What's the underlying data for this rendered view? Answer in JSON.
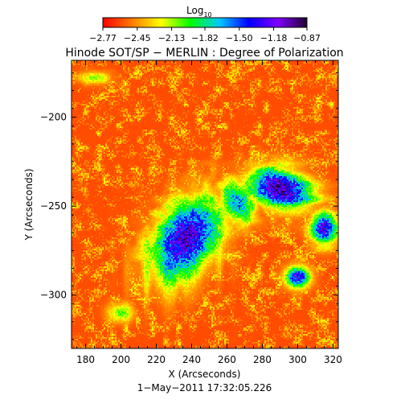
{
  "chart_data": {
    "type": "heatmap",
    "title": "Hinode SOT/SP − MERLIN : Degree of Polarization",
    "subtitle": "1−May−2011 17:32:05.226",
    "xlabel": "X (Arcseconds)",
    "ylabel": "Y (Arcseconds)",
    "xlim": [
      172,
      323
    ],
    "ylim": [
      -330,
      -168
    ],
    "x_ticks": [
      180,
      200,
      220,
      240,
      260,
      280,
      300,
      320
    ],
    "y_ticks": [
      -200,
      -250,
      -300
    ],
    "x_tick_labels": [
      "180",
      "200",
      "220",
      "240",
      "260",
      "280",
      "300",
      "320"
    ],
    "y_tick_labels": [
      "−200",
      "−250",
      "−300"
    ],
    "colorbar": {
      "label_main": "Log",
      "label_sub": "10",
      "range": [
        -2.77,
        -0.87
      ],
      "tick_values": [
        -2.77,
        -2.45,
        -2.13,
        -1.82,
        -1.5,
        -1.18,
        -0.87
      ],
      "tick_labels": [
        "−2.77",
        "−2.45",
        "−2.13",
        "−1.82",
        "−1.50",
        "−1.18",
        "−0.87"
      ],
      "colors": [
        "#ff0000",
        "#ff7a00",
        "#ffff00",
        "#00ff00",
        "#00c8ff",
        "#0000ff",
        "#8000ff",
        "#200030"
      ]
    },
    "background_value": -2.6,
    "regions": [
      {
        "name": "left plage lobe",
        "x_center": 237,
        "y_center": -268,
        "x_halfwidth": 28,
        "y_halfwidth": 18,
        "rotation_deg": 55,
        "peak": -1.05
      },
      {
        "name": "upper right plage",
        "x_center": 290,
        "y_center": -240,
        "x_halfwidth": 20,
        "y_halfwidth": 12,
        "rotation_deg": -15,
        "peak": -0.95
      },
      {
        "name": "right edge patch",
        "x_center": 315,
        "y_center": -262,
        "x_halfwidth": 8,
        "y_halfwidth": 10,
        "rotation_deg": 0,
        "peak": -1.15
      },
      {
        "name": "lower right patch",
        "x_center": 300,
        "y_center": -290,
        "x_halfwidth": 8,
        "y_halfwidth": 7,
        "rotation_deg": 0,
        "peak": -1.2
      },
      {
        "name": "central connector",
        "x_center": 266,
        "y_center": -248,
        "x_halfwidth": 10,
        "y_halfwidth": 14,
        "rotation_deg": 30,
        "peak": -1.55
      },
      {
        "name": "top left filament",
        "x_center": 185,
        "y_center": -178,
        "x_halfwidth": 10,
        "y_halfwidth": 4,
        "rotation_deg": 0,
        "peak": -2.05
      },
      {
        "name": "lower left blob",
        "x_center": 200,
        "y_center": -310,
        "x_halfwidth": 8,
        "y_halfwidth": 6,
        "rotation_deg": 0,
        "peak": -2.0
      }
    ]
  }
}
